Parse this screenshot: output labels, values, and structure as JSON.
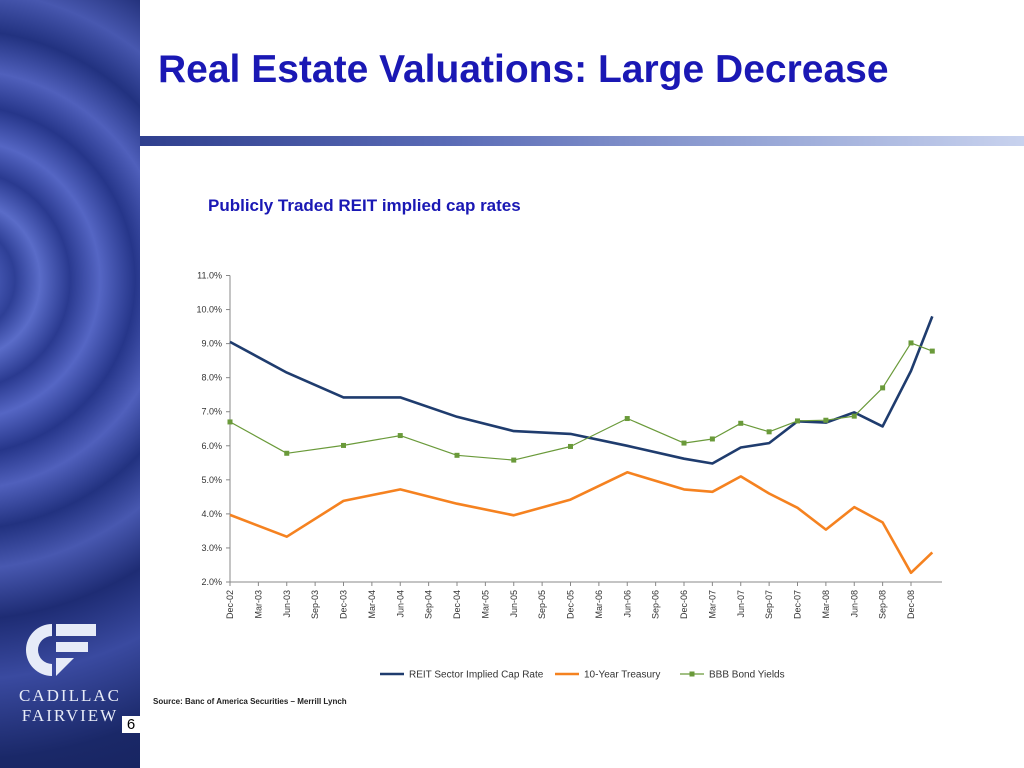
{
  "slide": {
    "title": "Real Estate Valuations: Large Decrease",
    "chart_subtitle": "Publicly Traded REIT implied cap rates",
    "source": "Source: Banc of America Securities – Merrill Lynch",
    "page_number": "6"
  },
  "brand": {
    "line1": "CADILLAC",
    "line2": "FAIRVIEW",
    "logo_icon": "cadillac-fairview-logo-icon"
  },
  "colors": {
    "title": "#1a18b4",
    "reit": "#1f3c6e",
    "treasury": "#f58220",
    "bbb": "#6a9a3a"
  },
  "chart_data": {
    "type": "line",
    "title": "",
    "xlabel": "",
    "ylabel": "",
    "ylim": [
      2.0,
      11.0
    ],
    "grid": false,
    "legend": "bottom",
    "y_ticks": [
      "11.0%",
      "10.0%",
      "9.0%",
      "8.0%",
      "7.0%",
      "6.0%",
      "5.0%",
      "4.0%",
      "3.0%",
      "2.0%"
    ],
    "y_tick_values": [
      11,
      10,
      9,
      8,
      7,
      6,
      5,
      4,
      3,
      2
    ],
    "categories": [
      "Dec-02",
      "Mar-03",
      "Jun-03",
      "Sep-03",
      "Dec-03",
      "Mar-04",
      "Jun-04",
      "Sep-04",
      "Dec-04",
      "Mar-05",
      "Jun-05",
      "Sep-05",
      "Dec-05",
      "Mar-06",
      "Jun-06",
      "Sep-06",
      "Dec-06",
      "Mar-07",
      "Jun-07",
      "Sep-07",
      "Dec-07",
      "Mar-08",
      "Jun-08",
      "Sep-08",
      "Dec-08"
    ],
    "series": [
      {
        "name": "REIT Sector Implied Cap Rate",
        "color": "#1f3c6e",
        "marker": "none",
        "points": [
          [
            0,
            9.05
          ],
          [
            2,
            8.15
          ],
          [
            4,
            7.42
          ],
          [
            6,
            7.42
          ],
          [
            8,
            6.85
          ],
          [
            10,
            6.43
          ],
          [
            12,
            6.35
          ],
          [
            14,
            6.0
          ],
          [
            16,
            5.62
          ],
          [
            17,
            5.48
          ],
          [
            18,
            5.95
          ],
          [
            19,
            6.08
          ],
          [
            20,
            6.72
          ],
          [
            21,
            6.68
          ],
          [
            22,
            6.98
          ],
          [
            23,
            6.57
          ],
          [
            24,
            8.2
          ],
          [
            24.75,
            9.8
          ]
        ]
      },
      {
        "name": "10-Year Treasury",
        "color": "#f58220",
        "marker": "none",
        "points": [
          [
            0,
            3.97
          ],
          [
            2,
            3.33
          ],
          [
            4,
            4.38
          ],
          [
            6,
            4.72
          ],
          [
            8,
            4.3
          ],
          [
            10,
            3.96
          ],
          [
            12,
            4.42
          ],
          [
            14,
            5.22
          ],
          [
            16,
            4.72
          ],
          [
            17,
            4.65
          ],
          [
            18,
            5.1
          ],
          [
            19,
            4.6
          ],
          [
            20,
            4.18
          ],
          [
            21,
            3.54
          ],
          [
            22,
            4.2
          ],
          [
            23,
            3.75
          ],
          [
            24,
            2.27
          ],
          [
            24.75,
            2.87
          ]
        ]
      },
      {
        "name": "BBB Bond Yields",
        "color": "#6a9a3a",
        "marker": "square",
        "points": [
          [
            0,
            6.7
          ],
          [
            2,
            5.78
          ],
          [
            4,
            6.01
          ],
          [
            6,
            6.3
          ],
          [
            8,
            5.72
          ],
          [
            10,
            5.58
          ],
          [
            12,
            5.98
          ],
          [
            14,
            6.8
          ],
          [
            16,
            6.08
          ],
          [
            17,
            6.2
          ],
          [
            18,
            6.66
          ],
          [
            19,
            6.41
          ],
          [
            20,
            6.73
          ],
          [
            21,
            6.75
          ],
          [
            22,
            6.87
          ],
          [
            23,
            7.7
          ],
          [
            24,
            9.02
          ],
          [
            24.75,
            8.78
          ]
        ]
      }
    ]
  }
}
